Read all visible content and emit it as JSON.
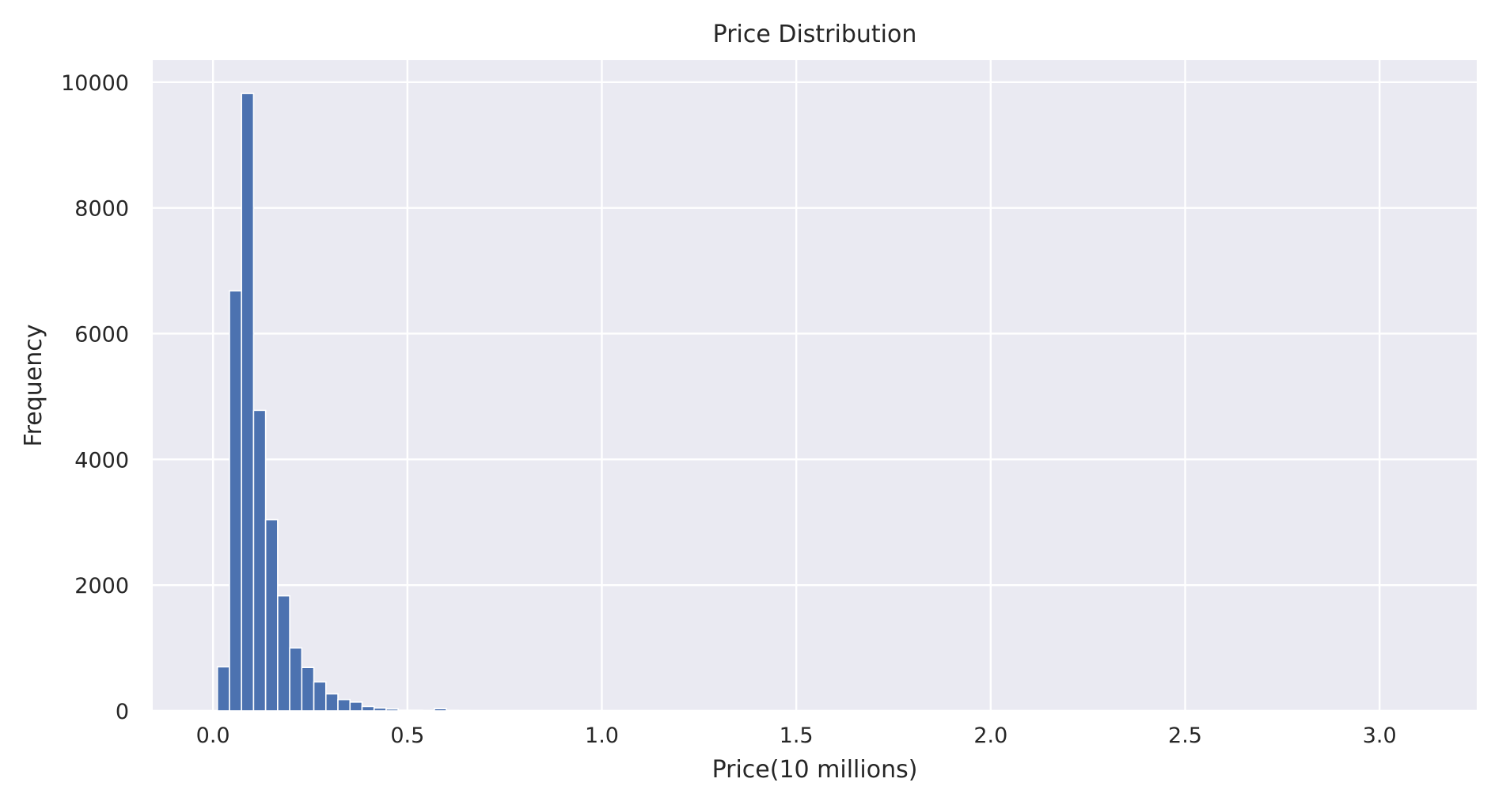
{
  "chart_data": {
    "type": "bar",
    "title": "Price Distribution",
    "xlabel": "Price(10 millions)",
    "ylabel": "Frequency",
    "xlim": [
      -0.155,
      3.25
    ],
    "ylim": [
      0,
      10350
    ],
    "x_ticks": [
      0.0,
      0.5,
      1.0,
      1.5,
      2.0,
      2.5,
      3.0
    ],
    "x_tick_labels": [
      "0.0",
      "0.5",
      "1.0",
      "1.5",
      "2.0",
      "2.5",
      "3.0"
    ],
    "y_ticks": [
      0,
      2000,
      4000,
      6000,
      8000,
      10000
    ],
    "y_tick_labels": [
      "0",
      "2000",
      "4000",
      "6000",
      "8000",
      "10000"
    ],
    "grid": true,
    "background": "#EAEAF2",
    "grid_color": "#FFFFFF",
    "bar_color": "#4C72B0",
    "bins": {
      "start": 0.0113,
      "width": 0.031,
      "counts": [
        700,
        6680,
        9820,
        4780,
        3040,
        1830,
        1000,
        690,
        460,
        270,
        180,
        140,
        70,
        45,
        30,
        10,
        10,
        5,
        35,
        8,
        5,
        3,
        2,
        1,
        1
      ]
    }
  }
}
